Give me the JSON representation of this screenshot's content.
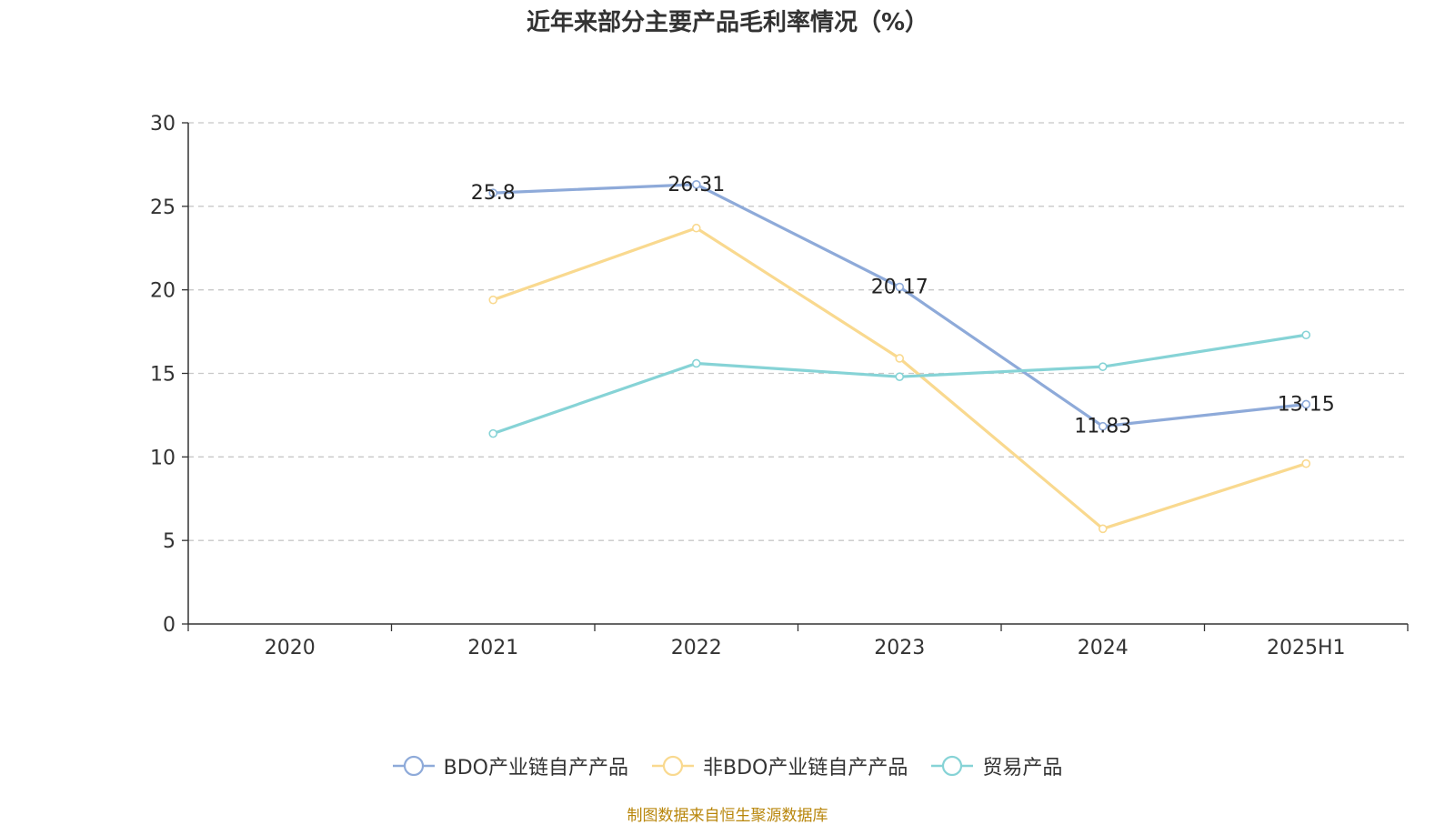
{
  "chart_data": {
    "type": "line",
    "title": "近年来部分主要产品毛利率情况（%）",
    "categories": [
      "2020",
      "2021",
      "2022",
      "2023",
      "2024",
      "2025H1"
    ],
    "ylim": [
      0,
      30
    ],
    "yticks": [
      0,
      5,
      10,
      15,
      20,
      25,
      30
    ],
    "grid": true,
    "legend_position": "bottom",
    "series": [
      {
        "name": "BDO产业链自产产品",
        "color": "#8eaad9",
        "values": [
          null,
          25.8,
          26.31,
          20.17,
          11.83,
          13.15
        ],
        "labels": true
      },
      {
        "name": "非BDO产业链自产产品",
        "color": "#f9d98f",
        "values": [
          null,
          19.4,
          23.7,
          15.9,
          5.7,
          9.6
        ],
        "labels": false
      },
      {
        "name": "贸易产品",
        "color": "#86d3d6",
        "values": [
          null,
          11.4,
          15.6,
          14.8,
          15.4,
          17.3
        ],
        "labels": false
      }
    ]
  },
  "source_note": "制图数据来自恒生聚源数据库"
}
